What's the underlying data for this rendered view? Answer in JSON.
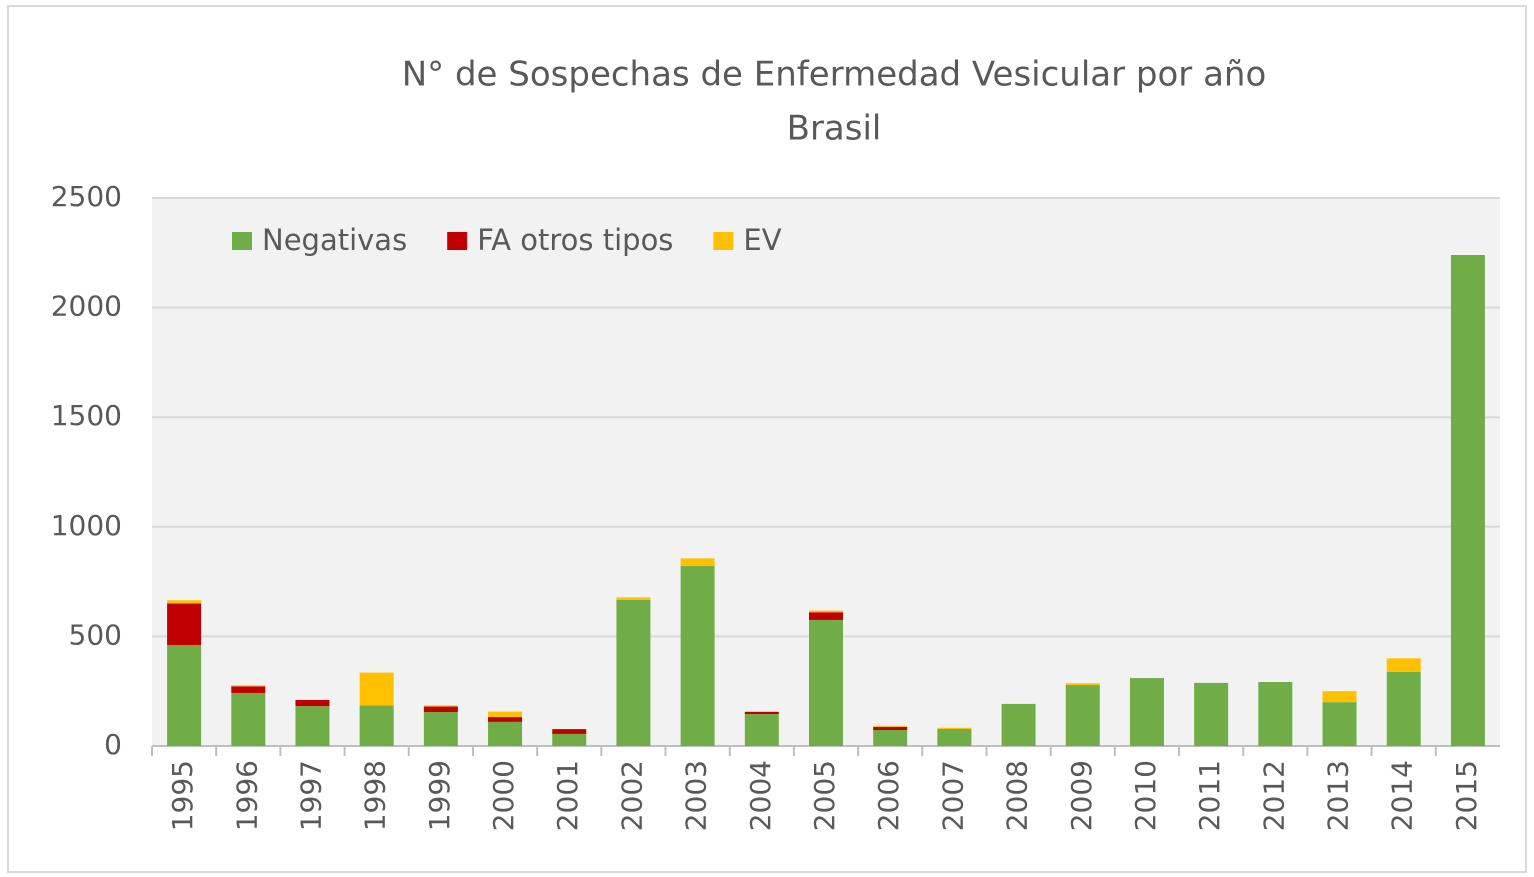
{
  "chart_data": {
    "type": "stacked_bar",
    "title": "N° de Sospechas de Enfermedad Vesicular por año",
    "subtitle": "Brasil",
    "categories": [
      "1995",
      "1996",
      "1997",
      "1998",
      "1999",
      "2000",
      "2001",
      "2002",
      "2003",
      "2004",
      "2005",
      "2006",
      "2007",
      "2008",
      "2009",
      "2010",
      "2011",
      "2012",
      "2013",
      "2014",
      "2015"
    ],
    "series": [
      {
        "name": "Negativas",
        "color": "#70ad47",
        "values": [
          460,
          242,
          182,
          185,
          155,
          110,
          55,
          666,
          821,
          146,
          575,
          73,
          78,
          192,
          278,
          310,
          288,
          292,
          200,
          338,
          2240
        ]
      },
      {
        "name": "FA otros tipos",
        "color": "#c00000",
        "values": [
          190,
          30,
          28,
          0,
          25,
          22,
          22,
          0,
          0,
          10,
          35,
          14,
          0,
          0,
          0,
          0,
          0,
          0,
          0,
          0,
          0
        ]
      },
      {
        "name": "EV",
        "color": "#ffc000",
        "values": [
          15,
          5,
          0,
          150,
          5,
          25,
          0,
          12,
          35,
          0,
          8,
          5,
          5,
          0,
          8,
          0,
          0,
          0,
          50,
          62,
          0
        ]
      }
    ],
    "ylim": [
      0,
      2500
    ],
    "yticks": [
      0,
      500,
      1000,
      1500,
      2000,
      2500
    ],
    "grid": true,
    "legend": "top-left"
  }
}
